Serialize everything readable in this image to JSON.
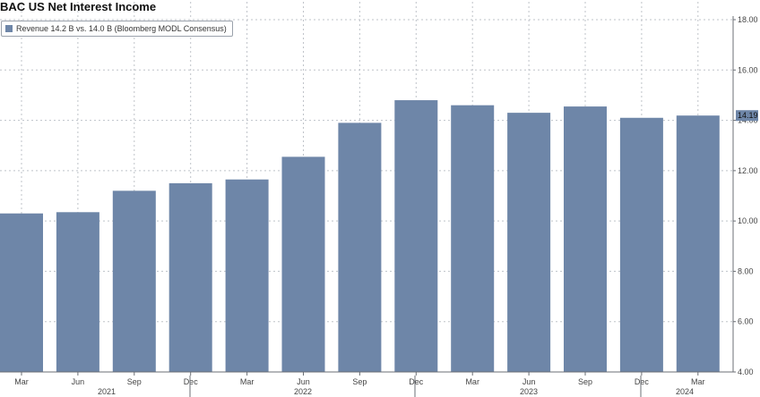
{
  "chart_data": {
    "type": "bar",
    "title": "BAC US Net Interest Income",
    "legend": "Revenue 14.2 B vs. 14.0 B (Bloomberg MODL Consensus)",
    "categories": [
      "Mar",
      "Jun",
      "Sep",
      "Dec",
      "Mar",
      "Jun",
      "Sep",
      "Dec",
      "Mar",
      "Jun",
      "Sep",
      "Dec",
      "Mar"
    ],
    "years": [
      {
        "label": "2021",
        "after_index": 1
      },
      {
        "label": "2022",
        "after_index": 5
      },
      {
        "label": "2023",
        "after_index": 9
      },
      {
        "label": "2024",
        "after_index": 12
      }
    ],
    "values": [
      10.3,
      10.35,
      11.2,
      11.5,
      11.65,
      12.55,
      13.9,
      14.8,
      14.6,
      14.3,
      14.55,
      14.1,
      14.19
    ],
    "last_value_label": "14.19",
    "ylim": [
      4.0,
      18.0
    ],
    "yticks": [
      "4.00",
      "6.00",
      "8.00",
      "10.00",
      "12.00",
      "14.00",
      "16.00",
      "18.00"
    ],
    "ytick_values": [
      4,
      6,
      8,
      10,
      12,
      14,
      16,
      18
    ],
    "bar_color": "#6e86a8",
    "grid": true,
    "xlabel": "",
    "ylabel": ""
  }
}
